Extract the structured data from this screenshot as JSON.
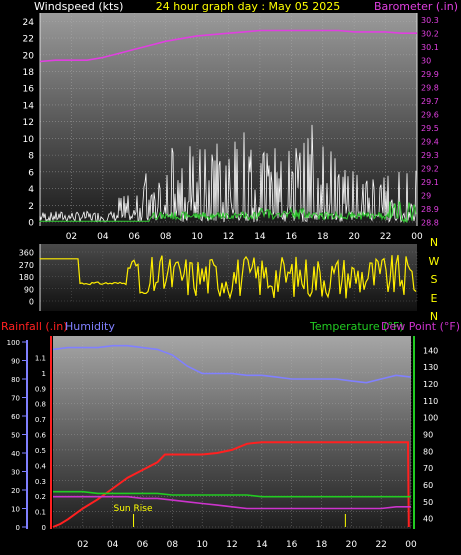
{
  "colors": {
    "wind": "#ffffff",
    "gust": "#33cc33",
    "barometer": "#e040e0",
    "direction": "#ffee00",
    "rainfall": "#ff2020",
    "humidity": "#8080ff",
    "temperature": "#22cc22",
    "dewpoint": "#cc33cc",
    "label_white": "#ffffff",
    "label_yellow": "#ffff00"
  },
  "chart_data": [
    {
      "type": "line",
      "title": "24 hour graph day : May 05 2025",
      "ylabel_left": "Windspeed (kts)",
      "ylabel_right": "Barometer (.in)",
      "x_ticks": [
        "02",
        "04",
        "06",
        "08",
        "10",
        "12",
        "14",
        "16",
        "18",
        "20",
        "22",
        "00"
      ],
      "xlim": [
        0,
        24
      ],
      "ylim_left": [
        0,
        25
      ],
      "ylim_right": [
        28.8,
        30.35
      ],
      "left_ticks": [
        "0",
        "2",
        "4",
        "6",
        "8",
        "10",
        "12",
        "14",
        "16",
        "18",
        "20",
        "22",
        "24"
      ],
      "right_ticks": [
        "28.8",
        "28.9",
        "29",
        "29.1",
        "29.2",
        "29.3",
        "29.4",
        "29.5",
        "29.6",
        "29.7",
        "29.8",
        "29.9",
        "30",
        "30.1",
        "30.2",
        "30.3"
      ],
      "series": [
        {
          "name": "Barometer",
          "axis": "right",
          "x": [
            0,
            1,
            2,
            3,
            4,
            5,
            6,
            7,
            8,
            9,
            10,
            11,
            12,
            13,
            14,
            15,
            16,
            17,
            18,
            19,
            20,
            21,
            22,
            23,
            24
          ],
          "y": [
            29.99,
            30.0,
            30.0,
            30.0,
            30.02,
            30.05,
            30.08,
            30.11,
            30.14,
            30.16,
            30.18,
            30.19,
            30.2,
            30.21,
            30.22,
            30.22,
            30.22,
            30.22,
            30.22,
            30.22,
            30.21,
            30.21,
            30.21,
            30.2,
            30.2
          ]
        }
      ]
    },
    {
      "type": "line",
      "right_labels": [
        "N",
        "W",
        "S",
        "E",
        "N"
      ],
      "ylim": [
        0,
        360
      ],
      "y_ticks": [
        "360",
        "270",
        "180",
        "90",
        "0"
      ]
    },
    {
      "type": "line",
      "ylabel_left": "Rainfall (.in)",
      "ylabel_left2": "Humidity",
      "ylabel_right": "Temperature (°F)",
      "ylabel_right2": "Dew Point (°F)",
      "annotation": "Sun Rise",
      "x_ticks": [
        "02",
        "04",
        "06",
        "08",
        "10",
        "12",
        "14",
        "16",
        "18",
        "20",
        "22",
        "00"
      ],
      "xlim": [
        0,
        24
      ],
      "humidity_ticks": [
        "100",
        "90",
        "80",
        "70",
        "60",
        "50",
        "40",
        "30",
        "20",
        "10",
        "0"
      ],
      "rain_ticks": [
        "1.1",
        "1",
        "0.9",
        "0.8",
        "0.7",
        "0.6",
        "0.5",
        "0.4",
        "0.3",
        "0.2",
        "0.1",
        "0"
      ],
      "temp_ticks": [
        "140",
        "130",
        "120",
        "110",
        "100",
        "90",
        "80",
        "70",
        "60",
        "50",
        "40"
      ],
      "rain_lim": [
        0,
        1.2
      ],
      "humidity_lim": [
        0,
        100
      ],
      "temp_lim": [
        35,
        145
      ],
      "series": [
        {
          "name": "Rainfall",
          "axis": "rain",
          "x": [
            0,
            0.5,
            1,
            2,
            3,
            4,
            5,
            6,
            7,
            7.5,
            8,
            9,
            10,
            11,
            12,
            13,
            14,
            15,
            16,
            17,
            18,
            19,
            20,
            21,
            22,
            23,
            23.8,
            23.85
          ],
          "y": [
            0.0,
            0.02,
            0.05,
            0.12,
            0.18,
            0.25,
            0.32,
            0.37,
            0.42,
            0.47,
            0.47,
            0.47,
            0.47,
            0.48,
            0.5,
            0.54,
            0.55,
            0.55,
            0.55,
            0.55,
            0.55,
            0.55,
            0.55,
            0.55,
            0.55,
            0.55,
            0.55,
            0.0
          ]
        },
        {
          "name": "Humidity",
          "axis": "humidity",
          "x": [
            0,
            1,
            2,
            3,
            4,
            5,
            6,
            7,
            8,
            9,
            10,
            11,
            12,
            13,
            14,
            15,
            16,
            17,
            18,
            19,
            20,
            21,
            22,
            23,
            24
          ],
          "y": [
            96,
            97,
            97,
            97,
            98,
            98,
            97,
            96,
            93,
            87,
            83,
            83,
            83,
            82,
            82,
            81,
            80,
            80,
            80,
            80,
            79,
            78,
            80,
            82,
            81
          ]
        },
        {
          "name": "Temperature",
          "axis": "temp",
          "x": [
            0,
            1,
            2,
            3,
            4,
            5,
            6,
            7,
            8,
            9,
            10,
            11,
            12,
            13,
            14,
            15,
            16,
            17,
            18,
            19,
            20,
            21,
            22,
            23,
            24
          ],
          "y": [
            56,
            56,
            56,
            55,
            55,
            55,
            55,
            55,
            54,
            54,
            54,
            54,
            54,
            54,
            53,
            53,
            53,
            53,
            53,
            53,
            53,
            53,
            53,
            53,
            53
          ]
        },
        {
          "name": "Dew Point",
          "axis": "temp",
          "x": [
            0,
            1,
            2,
            3,
            4,
            5,
            6,
            7,
            8,
            9,
            10,
            11,
            12,
            13,
            14,
            15,
            16,
            17,
            18,
            19,
            20,
            21,
            22,
            23,
            24
          ],
          "y": [
            53,
            53,
            53,
            53,
            53,
            53,
            52,
            52,
            51,
            50,
            49,
            48,
            47,
            46,
            46,
            46,
            46,
            46,
            46,
            46,
            46,
            46,
            46,
            47,
            47
          ]
        }
      ]
    }
  ]
}
